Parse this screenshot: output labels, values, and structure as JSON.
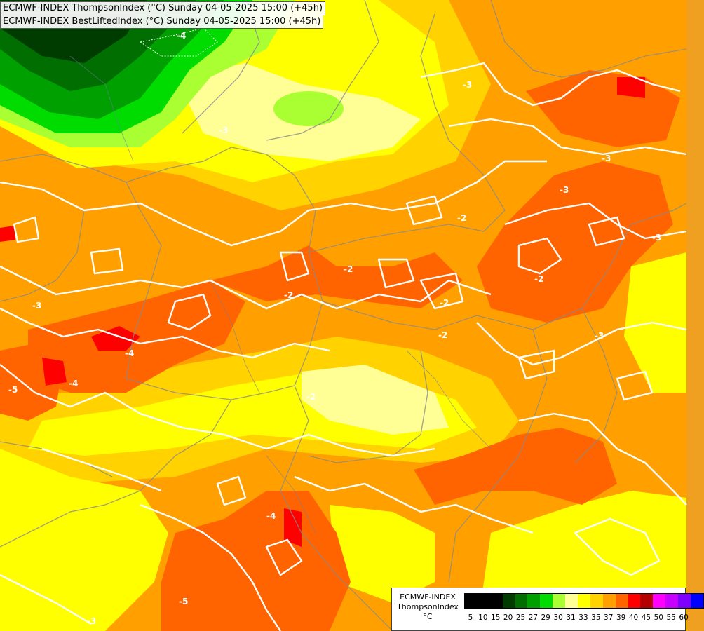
{
  "header": {
    "line1": "ECMWF-INDEX ThompsonIndex (°C) Sunday 04-05-2025 15:00 (+45h)",
    "line2": "ECMWF-INDEX BestLiftedIndex (°C) Sunday 04-05-2025 15:00 (+45h)"
  },
  "legend": {
    "source": "ECMWF-INDEX",
    "parameter": "ThompsonIndex",
    "unit": "°C",
    "bins": [
      {
        "label": "5",
        "color": "#000000"
      },
      {
        "label": "10",
        "color": "#000000"
      },
      {
        "label": "15",
        "color": "#000000"
      },
      {
        "label": "20",
        "color": "#003c00"
      },
      {
        "label": "25",
        "color": "#006e00"
      },
      {
        "label": "27",
        "color": "#00a000"
      },
      {
        "label": "29",
        "color": "#00dc00"
      },
      {
        "label": "30",
        "color": "#aaff32"
      },
      {
        "label": "31",
        "color": "#ffff96"
      },
      {
        "label": "33",
        "color": "#ffff00"
      },
      {
        "label": "35",
        "color": "#ffd200"
      },
      {
        "label": "37",
        "color": "#ffa000"
      },
      {
        "label": "39",
        "color": "#ff6400"
      },
      {
        "label": "40",
        "color": "#ff0000"
      },
      {
        "label": "45",
        "color": "#b40000"
      },
      {
        "label": "50",
        "color": "#ff00ff"
      },
      {
        "label": "55",
        "color": "#c800ff"
      },
      {
        "label": "60",
        "color": "#8000ff"
      },
      {
        "label": "",
        "color": "#0000ff"
      }
    ]
  },
  "contour_labels": [
    "-4",
    "-3",
    "-3",
    "-3",
    "-3",
    "-2",
    "-2",
    "-2",
    "-2",
    "-2",
    "-2",
    "-2",
    "-3",
    "-3",
    "-4",
    "-4",
    "-5",
    "-4",
    "-5",
    "-3",
    "-3"
  ]
}
